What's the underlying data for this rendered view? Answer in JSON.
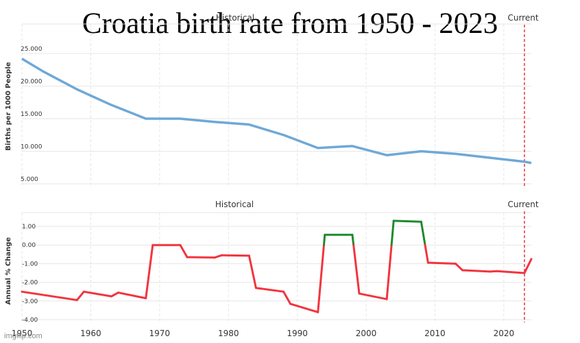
{
  "title": "Croatia birth rate from 1950 - 2023",
  "watermark": "imgflip.com",
  "colors": {
    "top_line": "#6fa8d6",
    "increase": "#1e8a2e",
    "decrease": "#f2343f",
    "current_marker": "#e8353b",
    "grid": "#e6e6e6",
    "text": "#333333"
  },
  "chart_data": [
    {
      "type": "line",
      "ylabel": "Births per 1000 People",
      "ylim": [
        5,
        25
      ],
      "yticks": [
        "25.000",
        "20.000",
        "15.000",
        "10.000",
        "5.000"
      ],
      "ytick_values": [
        25,
        20,
        15,
        10,
        5
      ],
      "regions": {
        "historical": "Historical",
        "current": "Current"
      },
      "current_year": 2023,
      "grid": true,
      "series": [
        {
          "x": [
            1950,
            1953,
            1958,
            1963,
            1968,
            1973,
            1978,
            1983,
            1988,
            1993,
            1998,
            2003,
            2008,
            2013,
            2018,
            2023,
            2024
          ],
          "values": [
            24.2,
            22.3,
            19.5,
            17.1,
            15.0,
            15.0,
            14.5,
            14.1,
            12.5,
            10.5,
            10.8,
            9.4,
            10.0,
            9.6,
            9.0,
            8.4,
            8.2
          ]
        }
      ]
    },
    {
      "type": "line",
      "ylabel": "Annual % Change",
      "ylim": [
        -4,
        1.5
      ],
      "yticks": [
        "1.00",
        "0.00",
        "-1.00",
        "-2.00",
        "-3.00",
        "-4.00"
      ],
      "ytick_values": [
        1,
        0,
        -1,
        -2,
        -3,
        -4
      ],
      "xticks": [
        "1950",
        "1960",
        "1970",
        "1980",
        "1990",
        "2000",
        "2010",
        "2020"
      ],
      "xtick_values": [
        1950,
        1960,
        1970,
        1980,
        1990,
        2000,
        2010,
        2020
      ],
      "xlim": [
        1950,
        2024
      ],
      "regions": {
        "historical": "Historical",
        "current": "Current"
      },
      "current_year": 2023,
      "grid": true,
      "series": [
        {
          "x": [
            1950,
            1958,
            1959,
            1963,
            1964,
            1968,
            1969,
            1973,
            1974,
            1978,
            1979,
            1983,
            1984,
            1988,
            1989,
            1993,
            1994,
            1998,
            1999,
            2003,
            2004,
            2008,
            2009,
            2013,
            2014,
            2018,
            2019,
            2023,
            2024
          ],
          "values": [
            -2.5,
            -2.95,
            -2.5,
            -2.75,
            -2.55,
            -2.85,
            0.0,
            0.0,
            -0.65,
            -0.67,
            -0.55,
            -0.57,
            -2.3,
            -2.5,
            -3.15,
            -3.6,
            0.55,
            0.55,
            -2.6,
            -2.9,
            1.3,
            1.25,
            -0.95,
            -1.0,
            -1.35,
            -1.42,
            -1.4,
            -1.5,
            -0.75
          ]
        }
      ]
    }
  ]
}
